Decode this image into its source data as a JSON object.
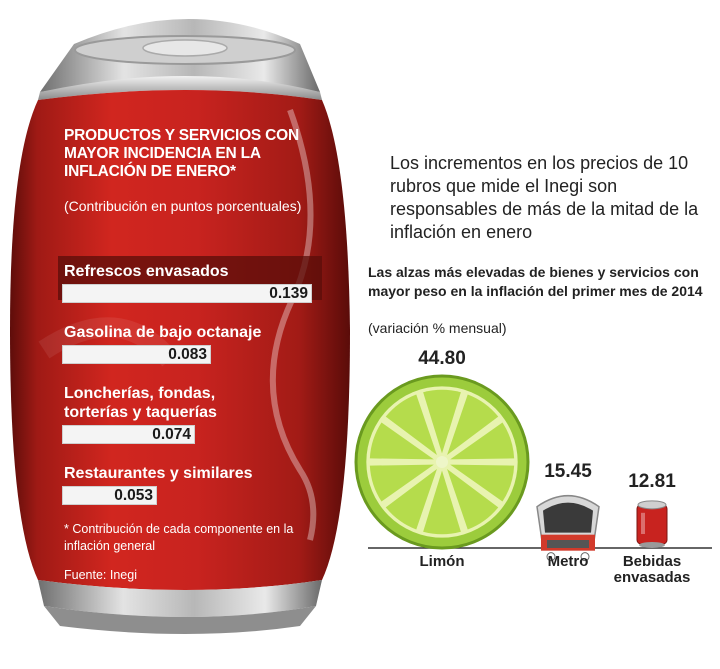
{
  "left_panel": {
    "title": "PRODUCTOS Y SERVICIOS CON MAYOR INCIDENCIA EN LA INFLACIÓN DE ENERO*",
    "subtitle": "(Contribución en puntos porcentuales)",
    "footnote": "* Contribución de cada componente en la inflación general",
    "source": "Fuente: Inegi"
  },
  "right_panel": {
    "intro": "Los incrementos en los precios de 10 rubros que mide el Inegi son responsables de más de la mitad de la inflación en enero",
    "title": "Las alzas más elevadas de bienes y servicios con mayor peso en la inflación del primer mes de 2014",
    "note": "(variación % mensual)"
  },
  "colors": {
    "can_red": "#c8231f",
    "can_dark": "#7a1410",
    "bar_fill": "#f4f4f4",
    "lime": "#8dc63f",
    "train_red": "#d23a2b"
  },
  "chart_data": [
    {
      "type": "bar",
      "orientation": "horizontal",
      "title": "PRODUCTOS Y SERVICIOS CON MAYOR INCIDENCIA EN LA INFLACIÓN DE ENERO*",
      "subtitle": "(Contribución en puntos porcentuales)",
      "categories": [
        "Refrescos envasados",
        "Gasolina de bajo octanaje",
        "Loncherías, fondas, torterías y taquerías",
        "Restaurantes y similares"
      ],
      "category_lines": [
        [
          "Refrescos envasados"
        ],
        [
          "Gasolina de bajo octanaje"
        ],
        [
          "Loncherías, fondas,",
          "torterías y taquerías"
        ],
        [
          "Restaurantes y similares"
        ]
      ],
      "values": [
        0.139,
        0.083,
        0.074,
        0.053
      ],
      "value_labels": [
        "0.139",
        "0.083",
        "0.074",
        "0.053"
      ]
    },
    {
      "type": "bar",
      "orientation": "vertical",
      "title": "Las alzas más elevadas de bienes y servicios con mayor peso en la inflación del primer mes de 2014",
      "ylabel": "(variación % mensual)",
      "categories": [
        "Limón",
        "Metro",
        "Bebidas envasadas"
      ],
      "category_lines": [
        [
          "Limón"
        ],
        [
          "Metro"
        ],
        [
          "Bebidas",
          "envasadas"
        ]
      ],
      "icons": [
        "lime-slice-icon",
        "metro-train-icon",
        "soda-can-icon"
      ],
      "values": [
        44.8,
        15.45,
        12.81
      ],
      "value_labels": [
        "44.80",
        "15.45",
        "12.81"
      ]
    }
  ]
}
